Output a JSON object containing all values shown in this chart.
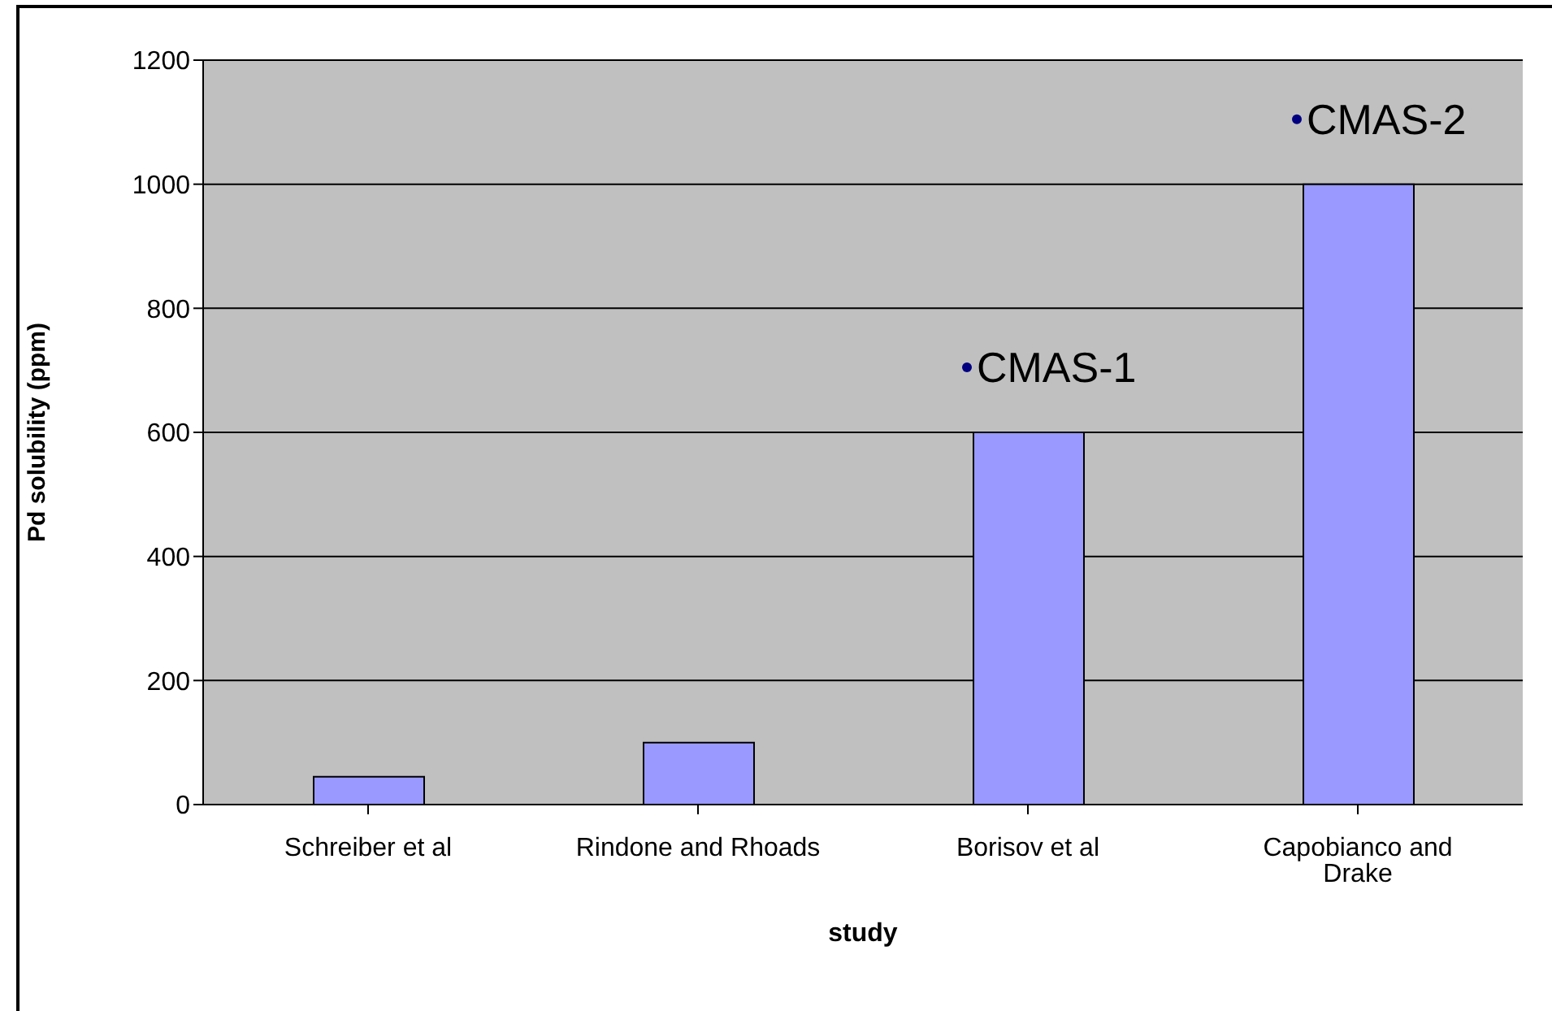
{
  "chart_data": {
    "type": "bar",
    "xlabel": "study",
    "ylabel": "Pd solubility (ppm)",
    "categories": [
      "Schreiber et al",
      "Rindone and Rhoads",
      "Borisov et al",
      "Capobianco and Drake"
    ],
    "values": [
      45,
      100,
      600,
      1000
    ],
    "color": "#9999ff",
    "ylim": [
      0,
      1200
    ],
    "yticks": [
      0,
      200,
      400,
      600,
      800,
      1000,
      1200
    ],
    "grid": "y",
    "legend": false,
    "annotations": [
      "CMAS-1",
      "CMAS-2"
    ]
  }
}
